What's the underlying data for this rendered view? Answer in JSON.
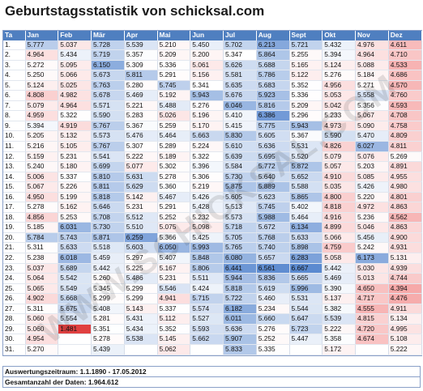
{
  "title": "Geburtstagsstatistik von schicksal.com",
  "watermark": "WWW.SCHICKSAL.COM",
  "headers": [
    "Ta",
    "Jan",
    "Feb",
    "Mär",
    "Apr",
    "Mai",
    "Jun",
    "Jul",
    "Aug",
    "Sept",
    "Okt",
    "Nov",
    "Dez"
  ],
  "rows": [
    [
      "1.",
      "5.777",
      "5.037",
      "5.728",
      "5.539",
      "5.210",
      "5.450",
      "5.702",
      "6.213",
      "5.721",
      "5.432",
      "4.976",
      "4.611"
    ],
    [
      "2.",
      "4.964",
      "5.434",
      "5.719",
      "5.357",
      "5.209",
      "5.200",
      "5.347",
      "5.864",
      "5.255",
      "5.394",
      "4.964",
      "4.710"
    ],
    [
      "3.",
      "5.272",
      "5.095",
      "6.150",
      "5.309",
      "5.336",
      "5.061",
      "5.626",
      "5.688",
      "5.165",
      "5.124",
      "5.088",
      "4.533"
    ],
    [
      "4.",
      "5.250",
      "5.066",
      "5.673",
      "5.811",
      "5.291",
      "5.156",
      "5.581",
      "5.786",
      "5.122",
      "5.276",
      "5.184",
      "4.686"
    ],
    [
      "5.",
      "5.124",
      "5.025",
      "5.763",
      "5.280",
      "5.745",
      "5.341",
      "5.635",
      "5.683",
      "5.352",
      "4.956",
      "5.271",
      "4.570"
    ],
    [
      "6.",
      "4.808",
      "4.982",
      "5.678",
      "5.469",
      "5.192",
      "5.943",
      "5.676",
      "5.923",
      "5.336",
      "5.053",
      "5.558",
      "4.760"
    ],
    [
      "7.",
      "5.079",
      "4.964",
      "5.571",
      "5.221",
      "5.488",
      "5.276",
      "6.046",
      "5.816",
      "5.209",
      "5.042",
      "5.356",
      "4.593"
    ],
    [
      "8.",
      "4.959",
      "5.322",
      "5.590",
      "5.283",
      "5.026",
      "5.196",
      "5.410",
      "6.386",
      "5.296",
      "5.233",
      "5.067",
      "4.708"
    ],
    [
      "9.",
      "5.394",
      "4.919",
      "5.767",
      "5.367",
      "5.259",
      "5.170",
      "5.415",
      "5.775",
      "5.943",
      "4.973",
      "5.090",
      "4.758"
    ],
    [
      "10.",
      "5.205",
      "5.132",
      "5.573",
      "5.476",
      "5.464",
      "5.663",
      "5.830",
      "5.605",
      "5.367",
      "5.590",
      "5.470",
      "4.809"
    ],
    [
      "11.",
      "5.216",
      "5.105",
      "5.767",
      "5.307",
      "5.289",
      "5.224",
      "5.610",
      "5.636",
      "5.531",
      "4.826",
      "6.027",
      "4.811"
    ],
    [
      "12.",
      "5.159",
      "5.231",
      "5.541",
      "5.222",
      "5.189",
      "5.322",
      "5.639",
      "5.695",
      "5.520",
      "5.079",
      "5.076",
      "5.269"
    ],
    [
      "13.",
      "5.240",
      "5.180",
      "5.699",
      "5.077",
      "5.302",
      "5.396",
      "5.584",
      "5.772",
      "5.872",
      "5.057",
      "5.203",
      "4.891"
    ],
    [
      "14.",
      "5.006",
      "5.337",
      "5.810",
      "5.631",
      "5.278",
      "5.306",
      "5.730",
      "5.640",
      "5.652",
      "4.910",
      "5.085",
      "4.955"
    ],
    [
      "15.",
      "5.067",
      "5.226",
      "5.811",
      "5.629",
      "5.360",
      "5.219",
      "5.875",
      "5.889",
      "5.588",
      "5.035",
      "5.426",
      "4.980"
    ],
    [
      "16.",
      "4.950",
      "5.199",
      "5.818",
      "5.142",
      "5.467",
      "5.426",
      "5.605",
      "5.623",
      "5.865",
      "4.800",
      "5.220",
      "4.801"
    ],
    [
      "17.",
      "5.278",
      "5.162",
      "5.646",
      "5.231",
      "5.291",
      "5.428",
      "5.513",
      "5.745",
      "5.402",
      "4.818",
      "4.972",
      "4.863"
    ],
    [
      "18.",
      "4.856",
      "5.253",
      "5.708",
      "5.512",
      "5.252",
      "5.232",
      "5.573",
      "5.988",
      "5.464",
      "4.916",
      "5.236",
      "4.562"
    ],
    [
      "19.",
      "5.185",
      "6.031",
      "5.730",
      "5.510",
      "5.075",
      "5.098",
      "5.718",
      "5.672",
      "6.134",
      "4.899",
      "5.046",
      "4.863"
    ],
    [
      "20.",
      "5.784",
      "5.743",
      "5.871",
      "6.259",
      "5.366",
      "5.425",
      "5.705",
      "5.768",
      "5.633",
      "5.066",
      "5.456",
      "4.900"
    ],
    [
      "21.",
      "5.311",
      "5.633",
      "5.518",
      "5.603",
      "6.050",
      "5.993",
      "5.765",
      "5.740",
      "5.898",
      "4.759",
      "5.242",
      "4.931"
    ],
    [
      "22.",
      "5.238",
      "6.018",
      "5.459",
      "5.297",
      "5.407",
      "5.848",
      "6.080",
      "5.657",
      "6.283",
      "5.058",
      "6.173",
      "5.131"
    ],
    [
      "23.",
      "5.037",
      "5.689",
      "5.442",
      "5.225",
      "5.167",
      "5.806",
      "6.441",
      "6.561",
      "6.667",
      "5.442",
      "5.030",
      "4.939"
    ],
    [
      "24.",
      "5.064",
      "5.542",
      "5.260",
      "5.486",
      "5.231",
      "5.511",
      "5.944",
      "5.836",
      "5.665",
      "5.469",
      "5.013",
      "4.744"
    ],
    [
      "25.",
      "5.065",
      "5.549",
      "5.345",
      "5.299",
      "5.546",
      "5.424",
      "5.818",
      "5.619",
      "5.996",
      "5.390",
      "4.650",
      "4.394"
    ],
    [
      "26.",
      "4.902",
      "5.668",
      "5.299",
      "5.299",
      "4.941",
      "5.715",
      "5.722",
      "5.460",
      "5.531",
      "5.137",
      "4.717",
      "4.476"
    ],
    [
      "27.",
      "5.311",
      "5.675",
      "5.408",
      "5.143",
      "5.337",
      "5.574",
      "6.182",
      "5.234",
      "5.544",
      "5.382",
      "4.555",
      "4.911"
    ],
    [
      "28.",
      "5.060",
      "5.554",
      "5.281",
      "5.431",
      "5.112",
      "5.527",
      "6.011",
      "5.660",
      "5.647",
      "5.539",
      "4.815",
      "5.134"
    ],
    [
      "29.",
      "5.060",
      "1.481",
      "5.351",
      "5.434",
      "5.352",
      "5.593",
      "5.636",
      "5.276",
      "5.723",
      "5.222",
      "4.720",
      "4.995"
    ],
    [
      "30.",
      "4.954",
      "",
      "5.278",
      "5.538",
      "5.145",
      "5.662",
      "5.907",
      "5.252",
      "5.447",
      "5.358",
      "4.674",
      "5.108"
    ],
    [
      "31.",
      "5.270",
      "",
      "5.439",
      "",
      "5.062",
      "",
      "5.833",
      "5.335",
      "",
      "5.172",
      "",
      "5.222"
    ]
  ],
  "footer": {
    "period": "Auswertungszeitraum: 1.1.1890 - 17.05.2012",
    "total": "Gesamtanzahl der Daten:  1.964.612"
  },
  "colors": {
    "header_bg": "#4f7fc0",
    "high": "#5b8ad0",
    "low": "#f07070",
    "min": "#e04040",
    "neutral": "#ffffff"
  }
}
